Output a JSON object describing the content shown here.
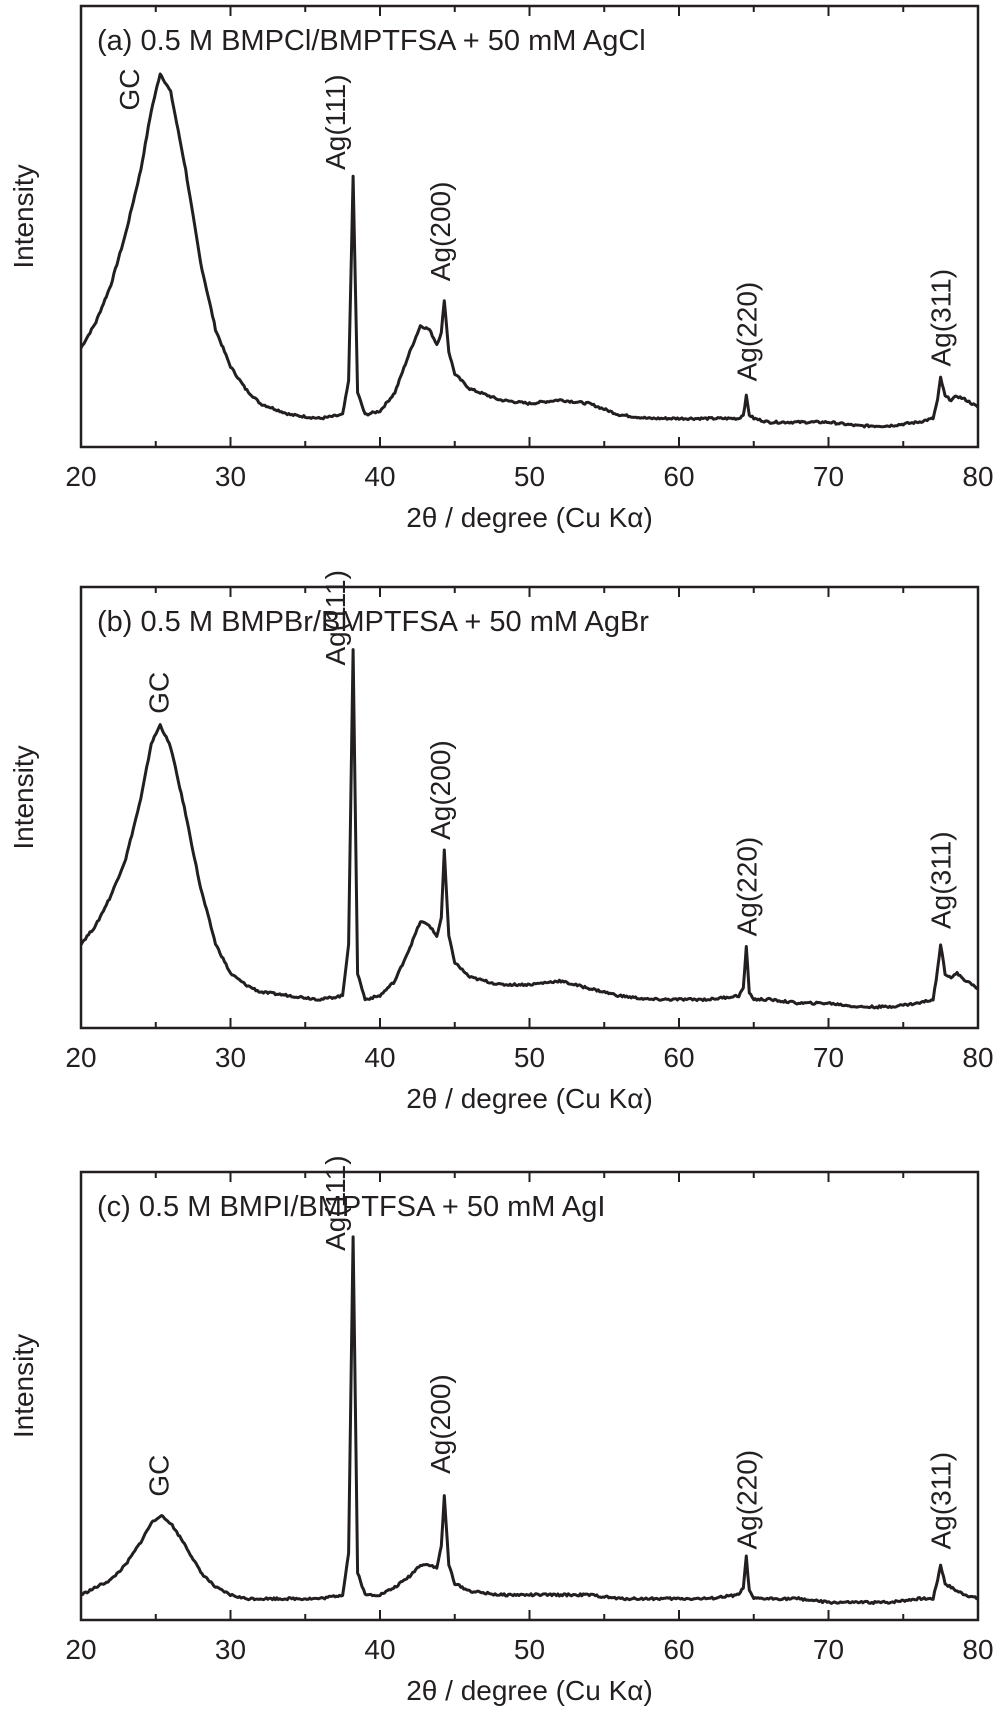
{
  "chart_data": [
    {
      "type": "line",
      "title": "(a) 0.5 M BMPCl/BMPTFSA + 50 mM AgCl",
      "xlabel": "2θ / degree (Cu Kα)",
      "ylabel": "Intensity",
      "xlim": [
        20,
        80
      ],
      "ylim": [
        0,
        1
      ],
      "xticks": [
        "20",
        "30",
        "40",
        "50",
        "60",
        "70",
        "80"
      ],
      "y_tick_labels": false,
      "grid": false,
      "series": [
        {
          "x": [
            20,
            21,
            22,
            23,
            24,
            24.7,
            25.3,
            26,
            27,
            28,
            29,
            30,
            31,
            32,
            34,
            36,
            37.5,
            37.9,
            38.2,
            38.5,
            39,
            40,
            41,
            42,
            42.7,
            43.3,
            43.8,
            44.1,
            44.3,
            44.6,
            45,
            46,
            48,
            50,
            52,
            54,
            56,
            58,
            60,
            62,
            64,
            64.3,
            64.5,
            64.7,
            65,
            66,
            68,
            70,
            72,
            74,
            76,
            77,
            77.3,
            77.5,
            77.8,
            78.2,
            78.6,
            79.2,
            80
          ],
          "y": [
            0.24,
            0.31,
            0.41,
            0.55,
            0.72,
            0.88,
            0.98,
            0.93,
            0.72,
            0.47,
            0.29,
            0.19,
            0.13,
            0.09,
            0.06,
            0.05,
            0.06,
            0.15,
            0.7,
            0.12,
            0.06,
            0.07,
            0.12,
            0.23,
            0.3,
            0.29,
            0.25,
            0.28,
            0.37,
            0.23,
            0.17,
            0.13,
            0.1,
            0.09,
            0.1,
            0.09,
            0.06,
            0.05,
            0.05,
            0.05,
            0.05,
            0.06,
            0.11,
            0.06,
            0.05,
            0.04,
            0.04,
            0.04,
            0.03,
            0.03,
            0.04,
            0.05,
            0.1,
            0.16,
            0.11,
            0.1,
            0.11,
            0.1,
            0.08
          ]
        }
      ],
      "annotations": [
        {
          "text": "GC",
          "x": 23.2,
          "y": 0.88
        },
        {
          "text": "Ag(111)",
          "x": 37.0,
          "y": 0.72
        },
        {
          "text": "Ag(200)",
          "x": 44.0,
          "y": 0.42
        },
        {
          "text": "Ag(220)",
          "x": 64.5,
          "y": 0.15
        },
        {
          "text": "Ag(311)",
          "x": 77.5,
          "y": 0.19
        }
      ]
    },
    {
      "type": "line",
      "title": "(b) 0.5 M BMPBr/BMPTFSA + 50 mM AgBr",
      "xlabel": "2θ / degree (Cu Kα)",
      "ylabel": "Intensity",
      "xlim": [
        20,
        80
      ],
      "ylim": [
        0,
        1
      ],
      "xticks": [
        "20",
        "30",
        "40",
        "50",
        "60",
        "70",
        "80"
      ],
      "y_tick_labels": false,
      "grid": false,
      "series": [
        {
          "x": [
            20,
            21,
            22,
            23,
            24,
            24.7,
            25.3,
            26,
            27,
            28,
            29,
            30,
            31,
            32,
            34,
            36,
            37.5,
            37.9,
            38.2,
            38.5,
            39,
            40,
            41,
            42,
            42.7,
            43.3,
            43.8,
            44.1,
            44.3,
            44.6,
            45,
            46,
            48,
            50,
            52,
            54,
            56,
            58,
            60,
            62,
            64,
            64.3,
            64.5,
            64.7,
            65,
            66,
            68,
            70,
            72,
            74,
            76,
            77,
            77.3,
            77.5,
            77.8,
            78.2,
            78.6,
            79.2,
            80
          ],
          "y": [
            0.2,
            0.25,
            0.33,
            0.43,
            0.59,
            0.74,
            0.79,
            0.73,
            0.55,
            0.35,
            0.2,
            0.12,
            0.09,
            0.07,
            0.06,
            0.05,
            0.06,
            0.2,
            0.99,
            0.12,
            0.05,
            0.06,
            0.1,
            0.19,
            0.26,
            0.25,
            0.22,
            0.27,
            0.45,
            0.22,
            0.15,
            0.11,
            0.09,
            0.09,
            0.1,
            0.08,
            0.06,
            0.05,
            0.05,
            0.05,
            0.06,
            0.08,
            0.19,
            0.07,
            0.05,
            0.05,
            0.04,
            0.04,
            0.03,
            0.03,
            0.04,
            0.05,
            0.13,
            0.2,
            0.12,
            0.11,
            0.12,
            0.1,
            0.08
          ]
        }
      ],
      "annotations": [
        {
          "text": "GC",
          "x": 25.2,
          "y": 0.82
        },
        {
          "text": "Ag(111)",
          "x": 37.0,
          "y": 0.95
        },
        {
          "text": "Ag(200)",
          "x": 44.0,
          "y": 0.48
        },
        {
          "text": "Ag(220)",
          "x": 64.5,
          "y": 0.22
        },
        {
          "text": "Ag(311)",
          "x": 77.5,
          "y": 0.24
        }
      ]
    },
    {
      "type": "line",
      "title": "(c) 0.5 M BMPI/BMPTFSA + 50 mM AgI",
      "xlabel": "2θ / degree (Cu Kα)",
      "ylabel": "Intensity",
      "xlim": [
        20,
        80
      ],
      "ylim": [
        0,
        1
      ],
      "xticks": [
        "20",
        "30",
        "40",
        "50",
        "60",
        "70",
        "80"
      ],
      "y_tick_labels": false,
      "grid": false,
      "series": [
        {
          "x": [
            20,
            21,
            22,
            23,
            24,
            24.7,
            25.3,
            26,
            27,
            28,
            29,
            30,
            31,
            32,
            34,
            36,
            37.5,
            37.9,
            38.2,
            38.5,
            39,
            40,
            41,
            42,
            42.7,
            43.3,
            43.8,
            44.1,
            44.3,
            44.6,
            45,
            46,
            48,
            50,
            52,
            54,
            56,
            58,
            60,
            62,
            64,
            64.3,
            64.5,
            64.7,
            65,
            66,
            68,
            70,
            72,
            74,
            76,
            77,
            77.3,
            77.5,
            77.8,
            78.2,
            78.6,
            79.2,
            80
          ],
          "y": [
            0.04,
            0.06,
            0.08,
            0.12,
            0.18,
            0.23,
            0.25,
            0.23,
            0.17,
            0.1,
            0.06,
            0.04,
            0.03,
            0.03,
            0.03,
            0.03,
            0.04,
            0.15,
            0.99,
            0.1,
            0.04,
            0.04,
            0.06,
            0.09,
            0.12,
            0.12,
            0.11,
            0.17,
            0.3,
            0.12,
            0.07,
            0.05,
            0.04,
            0.04,
            0.04,
            0.04,
            0.03,
            0.03,
            0.03,
            0.03,
            0.04,
            0.06,
            0.14,
            0.05,
            0.03,
            0.03,
            0.03,
            0.02,
            0.02,
            0.02,
            0.03,
            0.03,
            0.08,
            0.12,
            0.07,
            0.06,
            0.05,
            0.04,
            0.03
          ]
        }
      ],
      "annotations": [
        {
          "text": "GC",
          "x": 25.2,
          "y": 0.3
        },
        {
          "text": "Ag(111)",
          "x": 37.0,
          "y": 0.95
        },
        {
          "text": "Ag(200)",
          "x": 44.0,
          "y": 0.36
        },
        {
          "text": "Ag(220)",
          "x": 64.5,
          "y": 0.16
        },
        {
          "text": "Ag(311)",
          "x": 77.5,
          "y": 0.16
        }
      ]
    }
  ]
}
